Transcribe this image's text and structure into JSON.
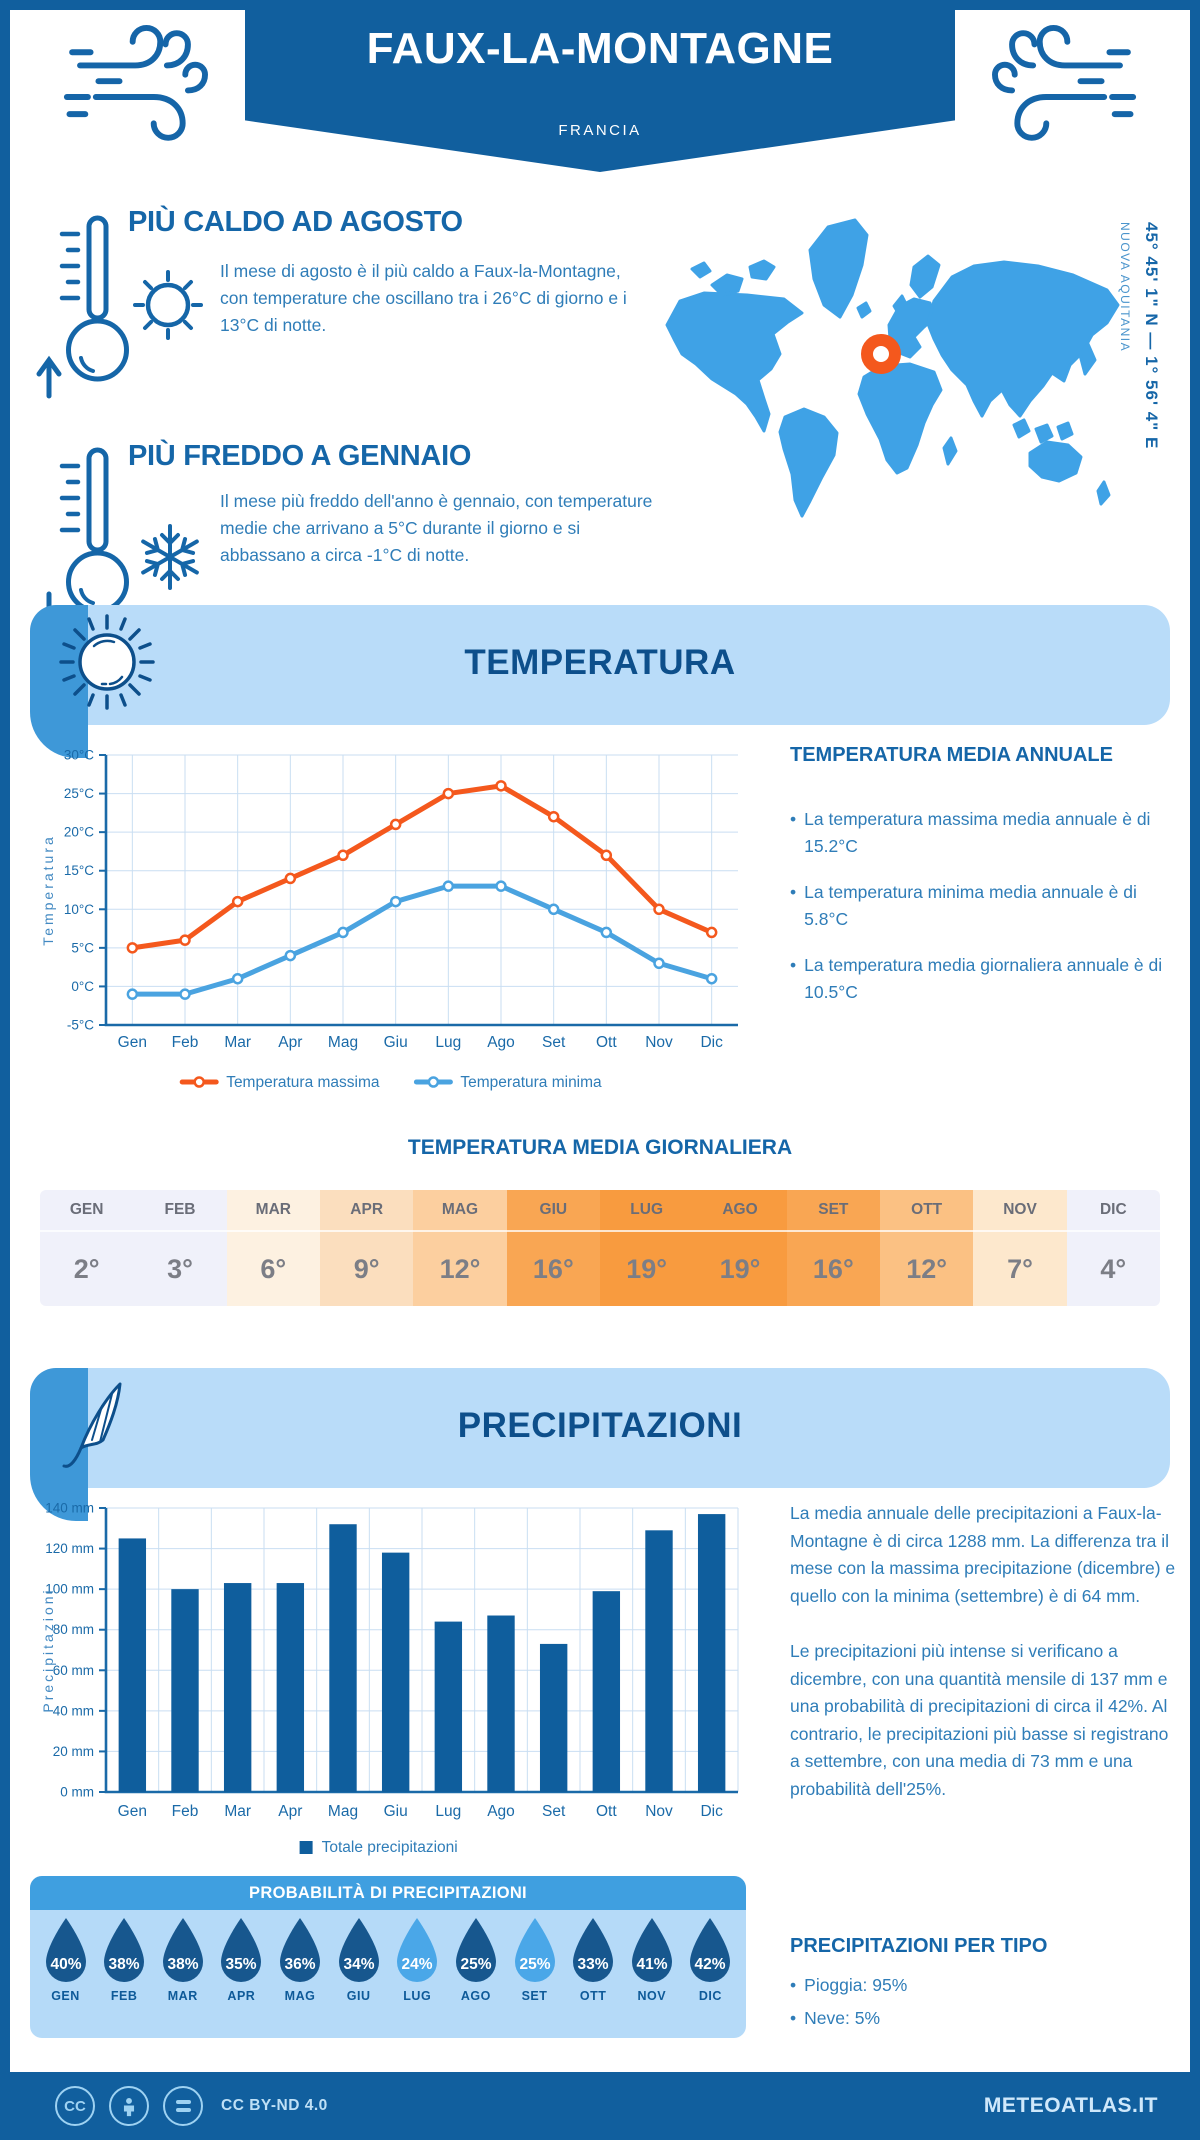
{
  "colors": {
    "primary_dark": "#115f9e",
    "heading_blue": "#1566a8",
    "body_blue": "#2f7db8",
    "banner_light": "#b9dcf9",
    "banner_cap": "#3e98d8",
    "map_land": "#3fa2e6",
    "marker_orange": "#f4581d",
    "line_max": "#f4581d",
    "line_min": "#4aa3e0",
    "bar_blue": "#0f5e9d",
    "drop_dark": "#17578e",
    "drop_light": "#4aa7e8"
  },
  "header": {
    "title": "FAUX-LA-MONTAGNE",
    "subtitle": "FRANCIA"
  },
  "highlights": {
    "hot": {
      "title": "PIÙ CALDO AD AGOSTO",
      "text": "Il mese di agosto è il più caldo a Faux-la-Montagne, con temperature che oscillano tra i 26°C di giorno e i 13°C di notte."
    },
    "cold": {
      "title": "PIÙ FREDDO A GENNAIO",
      "text": "Il mese più freddo dell'anno è gennaio, con temperature medie che arrivano a 5°C durante il giorno e si abbassano a circa -1°C di notte."
    }
  },
  "map": {
    "coordinates": "45° 45' 1\" N — 1° 56' 4\" E",
    "region": "NUOVA AQUITANIA"
  },
  "temperature_section": {
    "banner_title": "TEMPERATURA",
    "annual": {
      "title": "TEMPERATURA MEDIA ANNUALE",
      "bullets": [
        "La temperatura massima media annuale è di 15.2°C",
        "La temperatura minima media annuale è di 5.8°C",
        "La temperatura media giornaliera annuale è di 10.5°C"
      ]
    },
    "daily_table": {
      "title": "TEMPERATURA MEDIA GIORNALIERA",
      "months": [
        "GEN",
        "FEB",
        "MAR",
        "APR",
        "MAG",
        "GIU",
        "LUG",
        "AGO",
        "SET",
        "OTT",
        "NOV",
        "DIC"
      ],
      "values": [
        "2°",
        "3°",
        "6°",
        "9°",
        "12°",
        "16°",
        "19°",
        "19°",
        "16°",
        "12°",
        "7°",
        "4°"
      ],
      "cell_colors": [
        "#f0f1fa",
        "#f0f1fa",
        "#fdf1e1",
        "#fbdebe",
        "#fccf9f",
        "#f9a653",
        "#f89b3f",
        "#f89b3f",
        "#f9a653",
        "#fbc183",
        "#fde8cd",
        "#f0f1fa"
      ]
    }
  },
  "precipitation_section": {
    "banner_title": "PRECIPITAZIONI",
    "paragraphs": [
      "La media annuale delle precipitazioni a Faux-la-Montagne è di circa 1288 mm. La differenza tra il mese con la massima precipitazione (dicembre) e quello con la minima (settembre) è di 64 mm.",
      "Le precipitazioni più intense si verificano a dicembre, con una quantità mensile di 137 mm e una probabilità di precipitazioni di circa il 42%. Al contrario, le precipitazioni più basse si registrano a settembre, con una media di 73 mm e una probabilità dell'25%."
    ],
    "probability": {
      "title": "PROBABILITÀ DI PRECIPITAZIONI",
      "drops": [
        {
          "month": "GEN",
          "value": "40%",
          "shade": "dark"
        },
        {
          "month": "FEB",
          "value": "38%",
          "shade": "dark"
        },
        {
          "month": "MAR",
          "value": "38%",
          "shade": "dark"
        },
        {
          "month": "APR",
          "value": "35%",
          "shade": "dark"
        },
        {
          "month": "MAG",
          "value": "36%",
          "shade": "dark"
        },
        {
          "month": "GIU",
          "value": "34%",
          "shade": "dark"
        },
        {
          "month": "LUG",
          "value": "24%",
          "shade": "light"
        },
        {
          "month": "AGO",
          "value": "25%",
          "shade": "dark"
        },
        {
          "month": "SET",
          "value": "25%",
          "shade": "light"
        },
        {
          "month": "OTT",
          "value": "33%",
          "shade": "dark"
        },
        {
          "month": "NOV",
          "value": "41%",
          "shade": "dark"
        },
        {
          "month": "DIC",
          "value": "42%",
          "shade": "dark"
        }
      ]
    },
    "by_type": {
      "title": "PRECIPITAZIONI PER TIPO",
      "bullets": [
        "Pioggia: 95%",
        "Neve: 5%"
      ]
    }
  },
  "footer": {
    "license": "CC BY-ND 4.0",
    "site": "METEOATLAS.IT"
  },
  "chart_data": [
    {
      "type": "line",
      "title": "Temperatura",
      "categories": [
        "Gen",
        "Feb",
        "Mar",
        "Apr",
        "Mag",
        "Giu",
        "Lug",
        "Ago",
        "Set",
        "Ott",
        "Nov",
        "Dic"
      ],
      "series": [
        {
          "name": "Temperatura massima",
          "color": "#f4581d",
          "values": [
            5,
            6,
            11,
            14,
            17,
            21,
            25,
            26,
            22,
            17,
            10,
            7
          ]
        },
        {
          "name": "Temperatura minima",
          "color": "#4aa3e0",
          "values": [
            -1,
            -1,
            1,
            4,
            7,
            11,
            13,
            13,
            10,
            7,
            3,
            1
          ]
        }
      ],
      "xlabel": "",
      "ylabel": "Temperatura",
      "ylim": [
        -5,
        30
      ],
      "ytick_step": 5,
      "ytick_suffix": "°C",
      "grid": true,
      "legend_position": "bottom"
    },
    {
      "type": "bar",
      "title": "Precipitazioni",
      "categories": [
        "Gen",
        "Feb",
        "Mar",
        "Apr",
        "Mag",
        "Giu",
        "Lug",
        "Ago",
        "Set",
        "Ott",
        "Nov",
        "Dic"
      ],
      "series": [
        {
          "name": "Totale precipitazioni",
          "color": "#0f5e9d",
          "values": [
            125,
            100,
            103,
            103,
            132,
            118,
            84,
            87,
            73,
            99,
            129,
            137
          ]
        }
      ],
      "xlabel": "",
      "ylabel": "Precipitazioni",
      "ylim": [
        0,
        140
      ],
      "ytick_step": 20,
      "ytick_suffix": " mm",
      "grid": true,
      "legend_position": "bottom"
    }
  ]
}
